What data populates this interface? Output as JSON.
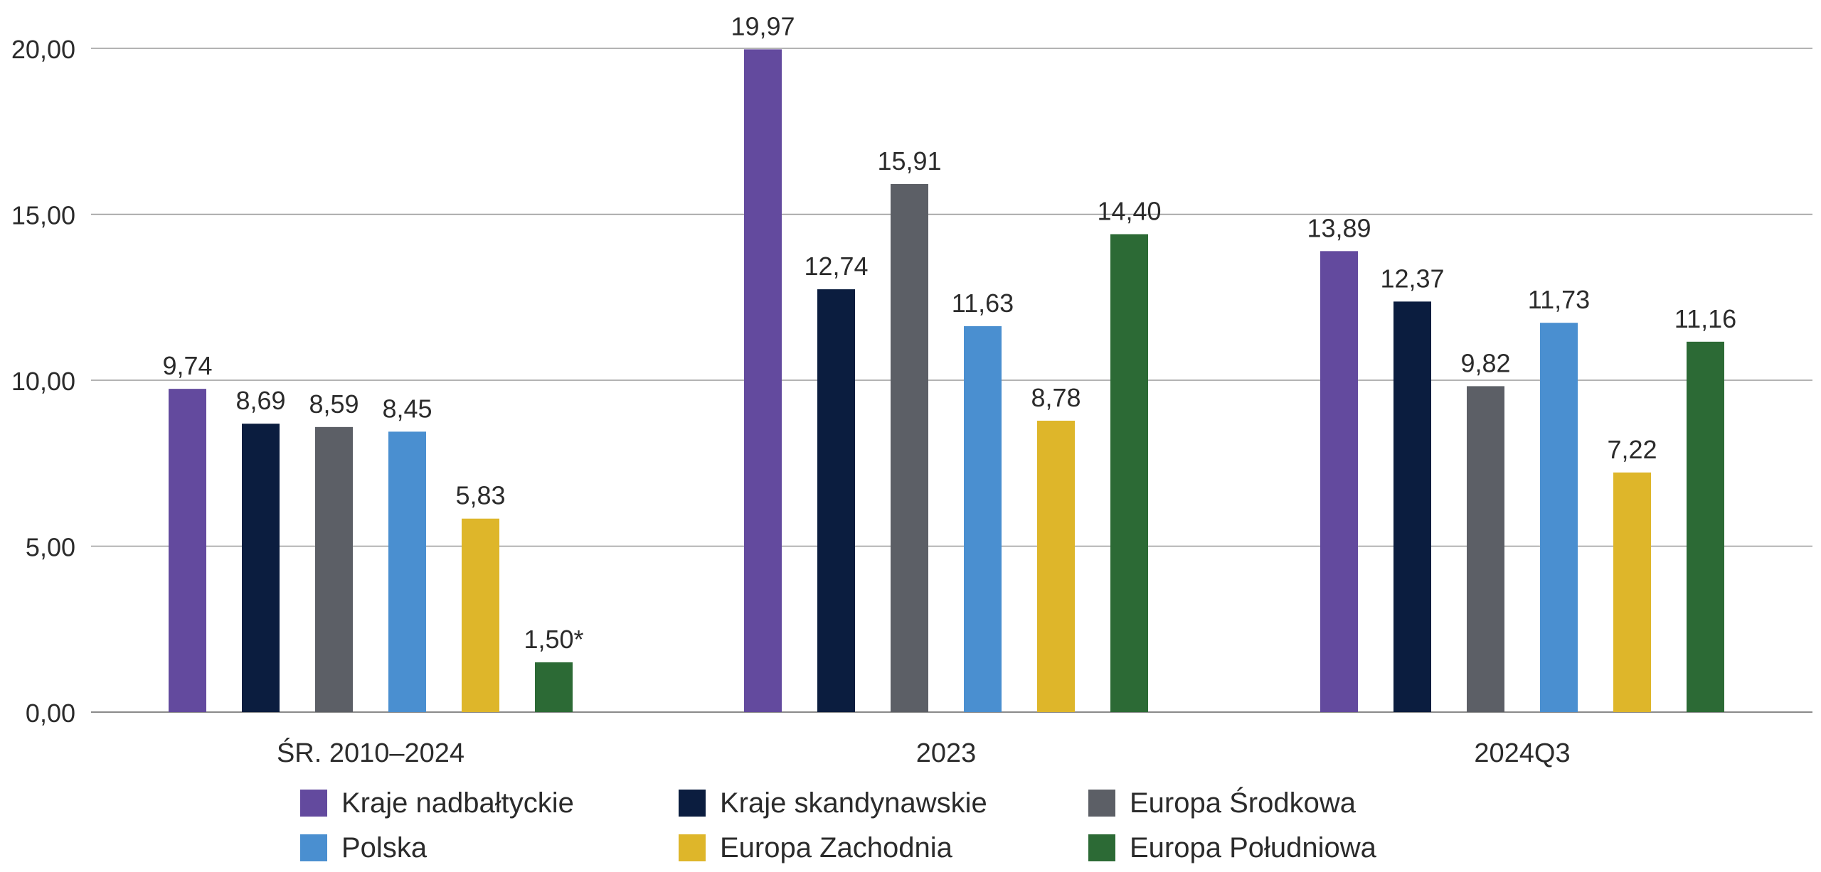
{
  "chart_data": {
    "type": "bar",
    "categories": [
      "ŚR. 2010–2024",
      "2023",
      "2024Q3"
    ],
    "series": [
      {
        "name": "Kraje nadbałtyckie",
        "color": "#634a9e",
        "values": [
          9.74,
          19.97,
          13.89
        ],
        "labels": [
          "9,74",
          "19,97",
          "13,89"
        ]
      },
      {
        "name": "Kraje skandynawskie",
        "color": "#0b1d3f",
        "values": [
          8.69,
          12.74,
          12.37
        ],
        "labels": [
          "8,69",
          "12,74",
          "12,37"
        ]
      },
      {
        "name": "Europa Środkowa",
        "color": "#5c5f66",
        "values": [
          8.59,
          15.91,
          9.82
        ],
        "labels": [
          "8,59",
          "15,91",
          "9,82"
        ]
      },
      {
        "name": "Polska",
        "color": "#4a8fd0",
        "values": [
          8.45,
          11.63,
          11.73
        ],
        "labels": [
          "8,45",
          "11,63",
          "11,73"
        ]
      },
      {
        "name": "Europa Zachodnia",
        "color": "#deb62a",
        "values": [
          5.83,
          8.78,
          7.22
        ],
        "labels": [
          "5,83",
          "8,78",
          "7,22"
        ]
      },
      {
        "name": "Europa Południowa",
        "color": "#2c6a35",
        "values": [
          1.5,
          14.4,
          11.16
        ],
        "labels": [
          "1,50*",
          "14,40",
          "11,16"
        ]
      }
    ],
    "yticks": [
      0,
      5,
      10,
      15,
      20
    ],
    "ytick_labels": [
      "0,00",
      "5,00",
      "10,00",
      "15,00",
      "20,00"
    ],
    "ylim": [
      0,
      20
    ],
    "grid": true,
    "legend_position": "bottom",
    "xlabel": "",
    "ylabel": "",
    "title": ""
  }
}
